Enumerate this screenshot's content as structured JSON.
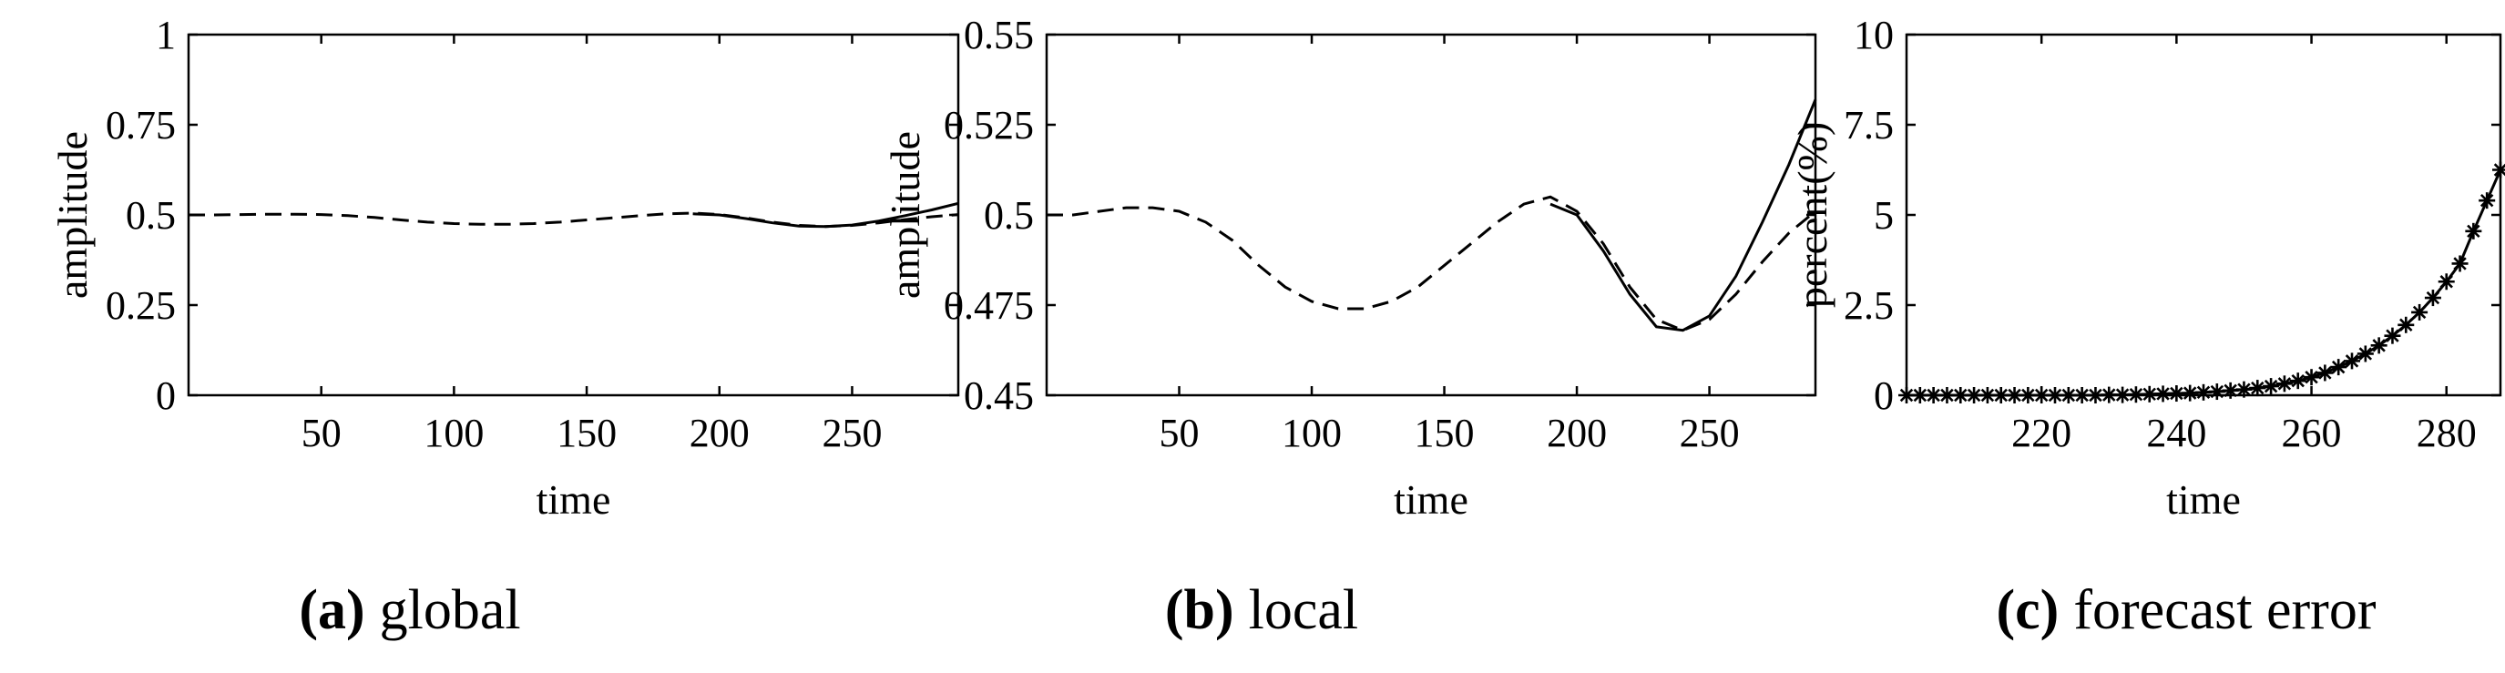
{
  "chart_data": [
    {
      "type": "line",
      "caption_letter": "(a)",
      "caption_text": "global",
      "xlabel": "time",
      "ylabel": "amplitude",
      "xlim": [
        0,
        290
      ],
      "ylim": [
        0,
        1
      ],
      "xticks": [
        50,
        100,
        150,
        200,
        250
      ],
      "xtick_labels": [
        "50",
        "100",
        "150",
        "200",
        "250"
      ],
      "yticks": [
        0,
        0.25,
        0.5,
        0.75,
        1
      ],
      "ytick_labels": [
        "0",
        "0.25",
        "0.5",
        "0.75",
        "1"
      ],
      "grid": false,
      "series": [
        {
          "style": "solid",
          "x": [
            190,
            200,
            210,
            220,
            230,
            240,
            250,
            260,
            270,
            280,
            290
          ],
          "y": [
            0.503,
            0.5,
            0.49,
            0.478,
            0.469,
            0.468,
            0.472,
            0.483,
            0.498,
            0.514,
            0.532
          ]
        },
        {
          "style": "dashed",
          "x": [
            0,
            10,
            20,
            30,
            40,
            50,
            60,
            70,
            80,
            90,
            100,
            110,
            120,
            130,
            140,
            150,
            160,
            170,
            180,
            190,
            200,
            210,
            220,
            230,
            240,
            250,
            260,
            270,
            280,
            290
          ],
          "y": [
            0.5,
            0.5,
            0.501,
            0.502,
            0.502,
            0.501,
            0.498,
            0.493,
            0.486,
            0.48,
            0.476,
            0.474,
            0.474,
            0.476,
            0.48,
            0.486,
            0.492,
            0.498,
            0.503,
            0.505,
            0.501,
            0.492,
            0.48,
            0.471,
            0.468,
            0.471,
            0.478,
            0.487,
            0.495,
            0.501
          ]
        }
      ]
    },
    {
      "type": "line",
      "caption_letter": "(b)",
      "caption_text": "local",
      "xlabel": "time",
      "ylabel": "amplitude",
      "xlim": [
        0,
        290
      ],
      "ylim": [
        0.45,
        0.55
      ],
      "xticks": [
        50,
        100,
        150,
        200,
        250
      ],
      "xtick_labels": [
        "50",
        "100",
        "150",
        "200",
        "250"
      ],
      "yticks": [
        0.45,
        0.475,
        0.5,
        0.525,
        0.55
      ],
      "ytick_labels": [
        "0.45",
        "0.475",
        "0.5",
        "0.525",
        "0.55"
      ],
      "grid": false,
      "series": [
        {
          "style": "solid",
          "x": [
            190,
            200,
            210,
            220,
            230,
            240,
            250,
            260,
            270,
            280,
            290
          ],
          "y": [
            0.503,
            0.5,
            0.49,
            0.478,
            0.469,
            0.468,
            0.472,
            0.483,
            0.498,
            0.514,
            0.532
          ]
        },
        {
          "style": "dashed",
          "x": [
            0,
            10,
            20,
            30,
            40,
            50,
            60,
            70,
            80,
            90,
            100,
            110,
            120,
            130,
            140,
            150,
            160,
            170,
            180,
            190,
            200,
            210,
            220,
            230,
            240,
            250,
            260,
            270,
            280,
            290
          ],
          "y": [
            0.5,
            0.5,
            0.501,
            0.502,
            0.502,
            0.501,
            0.498,
            0.493,
            0.486,
            0.48,
            0.476,
            0.474,
            0.474,
            0.476,
            0.48,
            0.486,
            0.492,
            0.498,
            0.503,
            0.505,
            0.501,
            0.492,
            0.48,
            0.471,
            0.468,
            0.471,
            0.478,
            0.487,
            0.495,
            0.501
          ]
        }
      ]
    },
    {
      "type": "line",
      "caption_letter": "(c)",
      "caption_text": "forecast error",
      "xlabel": "time",
      "ylabel": "percent(%)",
      "xlim": [
        200,
        288
      ],
      "ylim": [
        0,
        10
      ],
      "xticks": [
        220,
        240,
        260,
        280
      ],
      "xtick_labels": [
        "220",
        "240",
        "260",
        "280"
      ],
      "yticks": [
        0,
        2.5,
        5,
        7.5,
        10
      ],
      "ytick_labels": [
        "0",
        "2.5",
        "5",
        "7.5",
        "10"
      ],
      "grid": false,
      "series": [
        {
          "style": "solid-with-star-markers",
          "x": [
            200,
            202,
            204,
            206,
            208,
            210,
            212,
            214,
            216,
            218,
            220,
            222,
            224,
            226,
            228,
            230,
            232,
            234,
            236,
            238,
            240,
            242,
            244,
            246,
            248,
            250,
            252,
            254,
            256,
            258,
            260,
            262,
            264,
            266,
            268,
            270,
            272,
            274,
            276,
            278,
            280,
            282,
            284,
            286,
            288
          ],
          "y": [
            0,
            0,
            0,
            0,
            0,
            0,
            0,
            0,
            0,
            0,
            0,
            0,
            0,
            0,
            0,
            0.01,
            0.01,
            0.02,
            0.03,
            0.04,
            0.05,
            0.06,
            0.08,
            0.1,
            0.13,
            0.16,
            0.2,
            0.25,
            0.32,
            0.4,
            0.5,
            0.62,
            0.78,
            0.95,
            1.15,
            1.38,
            1.65,
            1.95,
            2.3,
            2.7,
            3.15,
            3.65,
            4.55,
            5.4,
            6.25
          ]
        }
      ]
    }
  ]
}
